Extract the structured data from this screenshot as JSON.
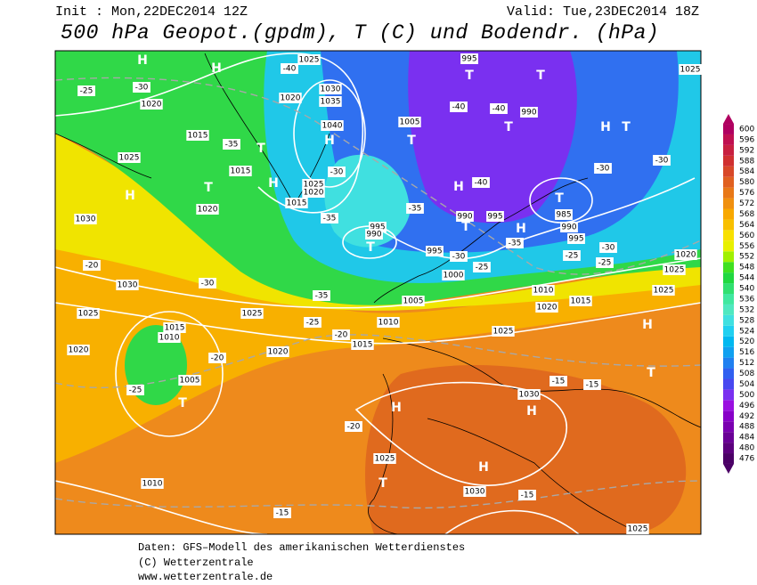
{
  "header": {
    "init": "Init : Mon,22DEC2014 12Z",
    "valid": "Valid: Tue,23DEC2014 18Z",
    "title": "500 hPa Geopot.(gpdm), T (C) und Bodendr. (hPa)"
  },
  "colorbar": {
    "ticks": [
      476,
      480,
      484,
      488,
      492,
      496,
      500,
      504,
      508,
      512,
      516,
      520,
      524,
      528,
      532,
      536,
      540,
      544,
      548,
      552,
      556,
      560,
      564,
      568,
      572,
      576,
      580,
      584,
      588,
      592,
      596,
      600
    ],
    "colors": [
      "#4b0066",
      "#5c007d",
      "#6a0096",
      "#7a00b0",
      "#8800c8",
      "#9a10e0",
      "#7a30f0",
      "#4848f0",
      "#3060f0",
      "#2080f0",
      "#10a0f0",
      "#00b8f0",
      "#20d0f0",
      "#40e0e0",
      "#50e8c0",
      "#40e8a0",
      "#30e070",
      "#20d840",
      "#40e020",
      "#a0f000",
      "#e8f000",
      "#f8e000",
      "#f8c000",
      "#f8a800",
      "#f09010",
      "#e87818",
      "#e06020",
      "#d84828",
      "#d03030",
      "#c82040",
      "#c01050",
      "#b00060"
    ]
  },
  "map_labels": [
    "H",
    "H",
    1025,
    -40,
    995,
    "T",
    "T",
    1025,
    -25,
    -30,
    1020,
    1020,
    1030,
    1035,
    -40,
    -40,
    990,
    1015,
    -35,
    "T",
    1040,
    "H",
    1005,
    "T",
    "T",
    "H",
    "T",
    -30,
    -30,
    1025,
    1015,
    -30,
    "H",
    "T",
    "H",
    1025,
    1020,
    1015,
    1020,
    "H",
    -40,
    "T",
    985,
    990,
    995,
    -35,
    -35,
    995,
    990,
    "T",
    990,
    995,
    "T",
    "H",
    -35,
    995,
    -30,
    -30,
    -25,
    -25,
    1030,
    -20,
    1030,
    -30,
    1000,
    -25,
    1020,
    1025,
    1025,
    1010,
    1015,
    1020,
    -35,
    1025,
    1025,
    1005,
    1010,
    -25,
    -20,
    1015,
    1010,
    1015,
    1020,
    1020,
    1025,
    "H",
    -20,
    "T",
    1005,
    -15,
    -15,
    -25,
    "T",
    "H",
    1030,
    "H",
    -20,
    1025,
    "T",
    "H",
    1010,
    1030,
    -15,
    -15,
    1025
  ],
  "footer": [
    "Daten: GFS–Modell des amerikanischen Wetterdienstes",
    "(C) Wetterzentrale",
    "www.wetterzentrale.de"
  ]
}
